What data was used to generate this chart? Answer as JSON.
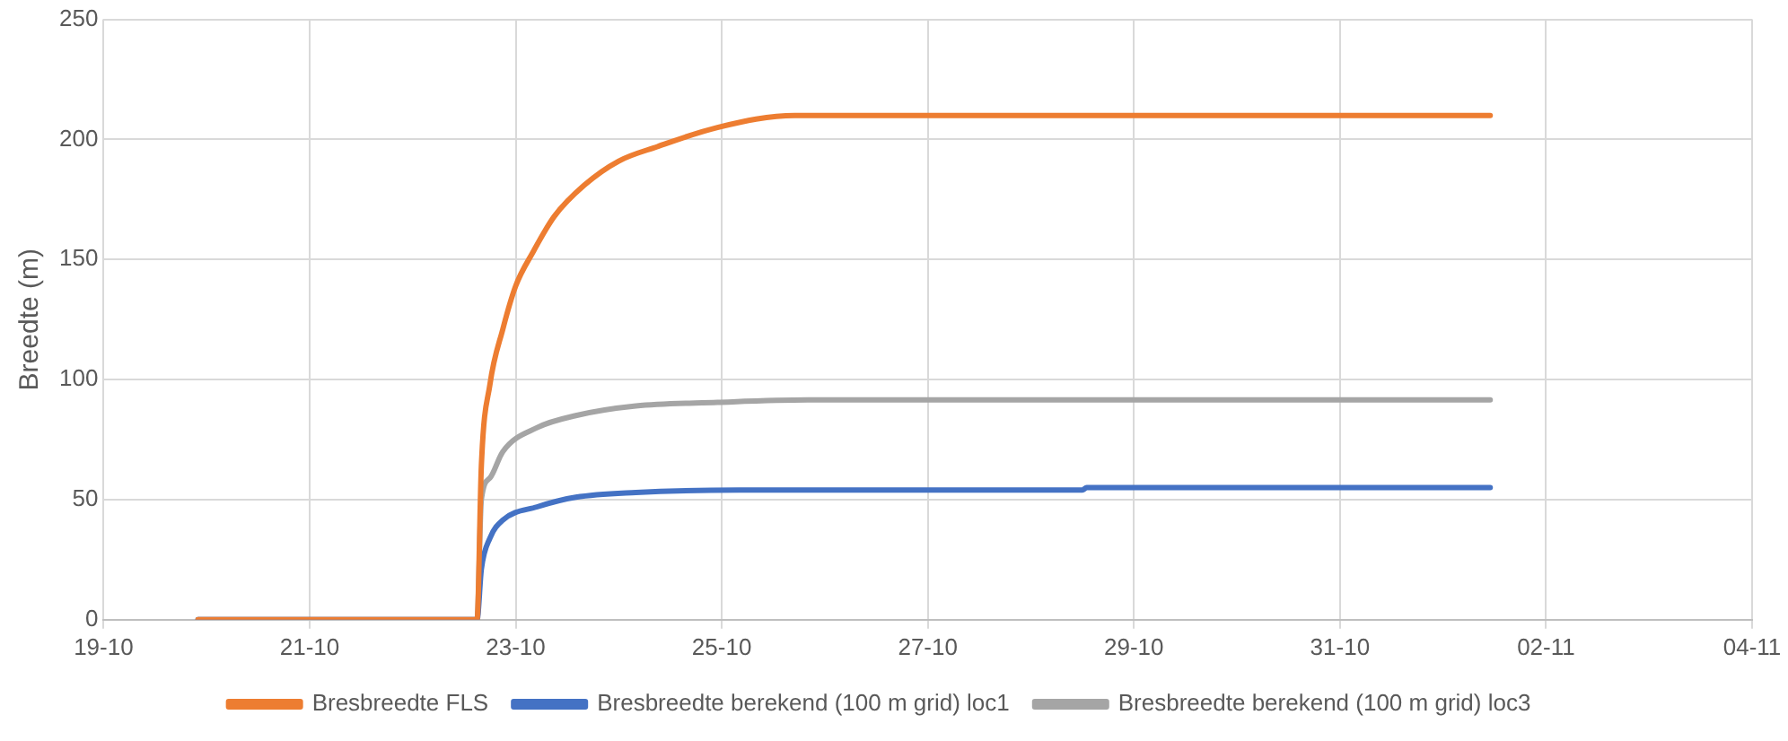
{
  "chart_data": {
    "type": "line",
    "ylabel": "Breedte (m)",
    "xlim": [
      "--10-19",
      "--11-04"
    ],
    "xticks": [
      {
        "value": "--10-19",
        "label": "19-10"
      },
      {
        "value": "--10-21",
        "label": "21-10"
      },
      {
        "value": "--10-23",
        "label": "23-10"
      },
      {
        "value": "--10-25",
        "label": "25-10"
      },
      {
        "value": "--10-27",
        "label": "27-10"
      },
      {
        "value": "--10-29",
        "label": "29-10"
      },
      {
        "value": "--10-31",
        "label": "31-10"
      },
      {
        "value": "--11-02",
        "label": "02-11"
      },
      {
        "value": "--11-04",
        "label": "04-11"
      }
    ],
    "ylim": [
      0,
      250
    ],
    "yticks": [
      0,
      50,
      100,
      150,
      200,
      250
    ],
    "grid": true,
    "legend": "bottom",
    "marker": "none",
    "line_style": "solid",
    "series": [
      {
        "name": "Bresbreedte FLS",
        "color": "#ed7d31",
        "x": [
          "--10-19T22:00",
          "--10-22T15:00",
          "--10-22T16:00",
          "--10-22T18:00",
          "--10-22T21:00",
          "--10-23T00:00",
          "--10-23T04:00",
          "--10-23T09:00",
          "--10-23T16:00",
          "--10-24T00:00",
          "--10-24T09:00",
          "--10-24T23:00",
          "--10-25T17:00",
          "--11-01T11:00"
        ],
        "values": [
          0,
          0,
          64,
          98,
          121,
          139,
          153,
          168,
          181,
          191,
          197,
          205,
          210,
          210
        ]
      },
      {
        "name": "Bresbreedte berekend (100 m grid) loc1",
        "color": "#4472c4",
        "x": [
          "--10-19T22:00",
          "--10-22T15:00",
          "--10-22T16:00",
          "--10-22T18:00",
          "--10-22T21:00",
          "--10-23T05:00",
          "--10-23T14:00",
          "--10-24T04:00",
          "--10-25T04:00",
          "--10-28T12:00",
          "--10-28T13:00",
          "--11-01T11:00"
        ],
        "values": [
          0,
          0,
          21,
          34,
          41.5,
          47,
          51,
          53,
          54,
          54,
          55,
          55
        ]
      },
      {
        "name": "Bresbreedte berekend (100 m grid) loc3",
        "color": "#a5a5a5",
        "x": [
          "--10-19T22:00",
          "--10-22T15:00",
          "--10-22T16:00",
          "--10-22T18:00",
          "--10-22T21:00",
          "--10-23T05:00",
          "--10-23T14:00",
          "--10-24T04:00",
          "--10-24T23:00",
          "--10-25T20:00",
          "--11-01T11:00"
        ],
        "values": [
          0,
          0,
          50,
          59,
          70,
          80,
          85,
          89,
          90.5,
          91.5,
          91.5
        ]
      }
    ]
  }
}
